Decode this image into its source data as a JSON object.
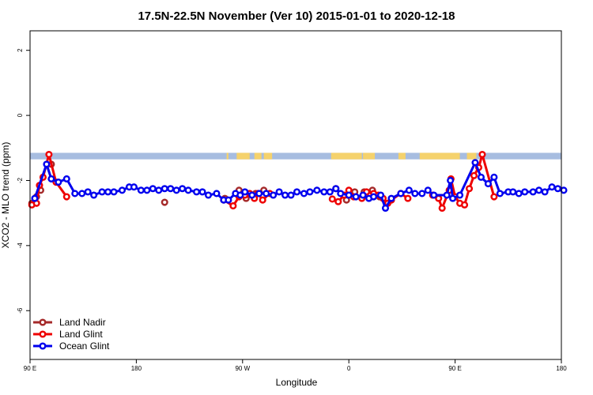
{
  "chart_data": {
    "type": "line",
    "title": "17.5N-22.5N November (Ver 10)   2015-01-01 to 2020-12-18",
    "xlabel": "Longitude",
    "ylabel": "XCO2 - MLO trend (ppm)",
    "x_ticks": [
      {
        "value": 0,
        "label": "90 E"
      },
      {
        "value": 90,
        "label": "180"
      },
      {
        "value": 180,
        "label": "90 W"
      },
      {
        "value": 270,
        "label": "0"
      },
      {
        "value": 360,
        "label": "90 E"
      },
      {
        "value": 450,
        "label": "180"
      }
    ],
    "y_ticks": [
      2,
      0,
      -2,
      -4,
      -6
    ],
    "xlim": [
      0,
      450
    ],
    "ylim": [
      -7.5,
      2.6
    ],
    "grid": false,
    "legend_position": "bottom-left",
    "land_ocean_band": {
      "y_range": [
        -1.35,
        -1.15
      ],
      "ocean_color": "#a7bde0",
      "land_color": "#f5d26c",
      "land_x_ranges": [
        [
          167,
          168
        ],
        [
          166.5,
          167.5
        ],
        [
          175,
          186
        ],
        [
          190,
          196
        ],
        [
          198,
          205
        ],
        [
          255,
          281
        ],
        [
          282,
          292
        ],
        [
          312,
          318
        ],
        [
          330,
          364
        ],
        [
          370,
          378
        ]
      ]
    },
    "series": [
      {
        "name": "Land Nadir",
        "color": "#a52a2a",
        "connected": false,
        "points": [
          [
            1.5,
            -2.7
          ],
          [
            5.5,
            -2.5
          ],
          [
            9,
            -2.3
          ],
          [
            18,
            -1.5
          ],
          [
            114,
            -2.67
          ],
          [
            165,
            -2.55
          ],
          [
            177,
            -2.3
          ],
          [
            183,
            -2.55
          ],
          [
            191,
            -2.4
          ],
          [
            198,
            -2.3
          ],
          [
            259,
            -2.25
          ],
          [
            268,
            -2.6
          ],
          [
            275,
            -2.35
          ],
          [
            283,
            -2.35
          ],
          [
            290,
            -2.3
          ],
          [
            296,
            -2.5
          ]
        ]
      },
      {
        "name": "Land Glint",
        "color": "#ee0000",
        "connected": true,
        "segments": [
          [
            [
              1.5,
              -2.75
            ],
            [
              5.5,
              -2.7
            ],
            [
              8,
              -2.15
            ],
            [
              11,
              -1.9
            ],
            [
              16,
              -1.2
            ],
            [
              22,
              -2.05
            ],
            [
              31,
              -2.5
            ]
          ],
          [
            [
              164,
              -2.6
            ],
            [
              172,
              -2.78
            ],
            [
              177,
              -2.5
            ],
            [
              182,
              -2.45
            ],
            [
              186,
              -2.4
            ],
            [
              190,
              -2.55
            ],
            [
              193,
              -2.4
            ],
            [
              197,
              -2.6
            ],
            [
              203,
              -2.4
            ]
          ],
          [
            [
              256,
              -2.57
            ],
            [
              261,
              -2.65
            ],
            [
              266,
              -2.45
            ],
            [
              270,
              -2.3
            ],
            [
              274,
              -2.5
            ],
            [
              281,
              -2.55
            ],
            [
              285,
              -2.35
            ],
            [
              291,
              -2.4
            ],
            [
              295,
              -2.45
            ],
            [
              299,
              -2.55
            ],
            [
              303,
              -2.7
            ],
            [
              306,
              -2.6
            ],
            [
              314,
              -2.4
            ],
            [
              320,
              -2.55
            ]
          ],
          [
            [
              341,
              -2.45
            ],
            [
              346,
              -2.55
            ],
            [
              349,
              -2.85
            ],
            [
              355,
              -2.3
            ],
            [
              356.5,
              -1.95
            ],
            [
              360,
              -2.5
            ],
            [
              364,
              -2.7
            ],
            [
              368,
              -2.75
            ],
            [
              372,
              -2.25
            ],
            [
              376,
              -1.85
            ],
            [
              380,
              -1.6
            ],
            [
              383,
              -1.2
            ],
            [
              393,
              -2.5
            ]
          ]
        ]
      },
      {
        "name": "Ocean Glint",
        "color": "#0000ee",
        "connected": true,
        "segments": [
          [
            [
              4,
              -2.55
            ],
            [
              14,
              -1.5
            ],
            [
              18,
              -1.95
            ],
            [
              24,
              -2.05
            ],
            [
              31,
              -1.95
            ],
            [
              38,
              -2.4
            ],
            [
              44,
              -2.4
            ],
            [
              49,
              -2.35
            ],
            [
              54,
              -2.45
            ],
            [
              61,
              -2.35
            ],
            [
              66,
              -2.35
            ],
            [
              71,
              -2.35
            ],
            [
              78,
              -2.3
            ],
            [
              84,
              -2.2
            ],
            [
              88,
              -2.2
            ],
            [
              94,
              -2.3
            ],
            [
              99,
              -2.3
            ],
            [
              104,
              -2.25
            ],
            [
              109,
              -2.3
            ],
            [
              114,
              -2.25
            ],
            [
              119,
              -2.25
            ],
            [
              124,
              -2.3
            ],
            [
              129,
              -2.25
            ],
            [
              134,
              -2.3
            ],
            [
              141,
              -2.35
            ],
            [
              146,
              -2.35
            ],
            [
              151,
              -2.45
            ],
            [
              158,
              -2.4
            ],
            [
              164,
              -2.6
            ],
            [
              168,
              -2.6
            ],
            [
              174,
              -2.4
            ],
            [
              178,
              -2.45
            ],
            [
              182,
              -2.35
            ],
            [
              188,
              -2.45
            ],
            [
              194,
              -2.4
            ],
            [
              200,
              -2.4
            ],
            [
              206,
              -2.45
            ],
            [
              211,
              -2.35
            ],
            [
              216,
              -2.45
            ],
            [
              221,
              -2.45
            ],
            [
              226,
              -2.35
            ],
            [
              232,
              -2.4
            ],
            [
              237,
              -2.35
            ],
            [
              243,
              -2.3
            ],
            [
              249,
              -2.35
            ],
            [
              254,
              -2.35
            ],
            [
              259,
              -2.25
            ],
            [
              263,
              -2.4
            ],
            [
              270,
              -2.45
            ],
            [
              276,
              -2.5
            ],
            [
              282,
              -2.45
            ],
            [
              287,
              -2.55
            ],
            [
              291,
              -2.5
            ],
            [
              297,
              -2.45
            ],
            [
              301,
              -2.85
            ],
            [
              306,
              -2.55
            ],
            [
              314,
              -2.4
            ],
            [
              321,
              -2.3
            ],
            [
              326,
              -2.4
            ],
            [
              332,
              -2.4
            ],
            [
              337,
              -2.3
            ],
            [
              342,
              -2.45
            ],
            [
              353,
              -2.45
            ],
            [
              356,
              -2.0
            ],
            [
              358,
              -2.55
            ],
            [
              364,
              -2.45
            ],
            [
              377,
              -1.45
            ],
            [
              382,
              -1.9
            ],
            [
              388,
              -2.1
            ],
            [
              393,
              -1.9
            ],
            [
              398,
              -2.4
            ],
            [
              405,
              -2.35
            ],
            [
              409,
              -2.35
            ],
            [
              414,
              -2.4
            ],
            [
              419,
              -2.35
            ],
            [
              426,
              -2.35
            ],
            [
              431,
              -2.3
            ],
            [
              436,
              -2.35
            ],
            [
              442,
              -2.2
            ],
            [
              447,
              -2.25
            ],
            [
              452,
              -2.3
            ]
          ]
        ]
      }
    ]
  }
}
